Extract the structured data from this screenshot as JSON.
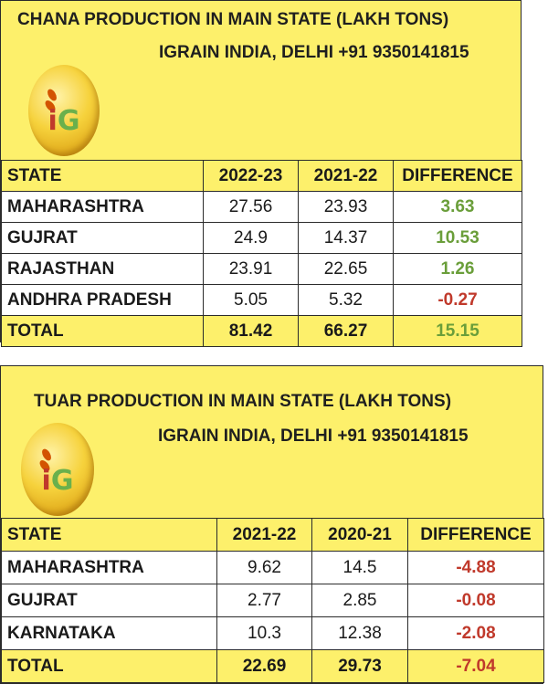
{
  "chana": {
    "title": "CHANA PRODUCTION IN MAIN STATE (LAKH TONS)",
    "subtitle": "IGRAIN INDIA, DELHI +91 9350141815",
    "logo_text": "iG",
    "headers": [
      "STATE",
      "2022-23",
      "2021-22",
      "DIFFERENCE"
    ],
    "rows": [
      {
        "state": "MAHARASHTRA",
        "a": "27.56",
        "b": "23.93",
        "diff": "3.63"
      },
      {
        "state": "GUJRAT",
        "a": "24.9",
        "b": "14.37",
        "diff": "10.53"
      },
      {
        "state": "RAJASTHAN",
        "a": "23.91",
        "b": "22.65",
        "diff": "1.26"
      },
      {
        "state": "ANDHRA PRADESH",
        "a": "5.05",
        "b": "5.32",
        "diff": "-0.27"
      }
    ],
    "total": {
      "state": "TOTAL",
      "a": "81.42",
      "b": "66.27",
      "diff": "15.15"
    }
  },
  "tuar": {
    "title": "TUAR PRODUCTION IN MAIN STATE (LAKH TONS)",
    "subtitle": "IGRAIN INDIA, DELHI +91 9350141815",
    "logo_text": "iG",
    "headers": [
      "STATE",
      "2021-22",
      "2020-21",
      "DIFFERENCE"
    ],
    "rows": [
      {
        "state": "MAHARASHTRA",
        "a": "9.62",
        "b": "14.5",
        "diff": "-4.88"
      },
      {
        "state": "GUJRAT",
        "a": "2.77",
        "b": "2.85",
        "diff": "-0.08"
      },
      {
        "state": "KARNATAKA",
        "a": "10.3",
        "b": "12.38",
        "diff": "-2.08"
      }
    ],
    "total": {
      "state": "TOTAL",
      "a": "22.69",
      "b": "29.73",
      "diff": "-7.04"
    }
  },
  "colors": {
    "panel": "#fdf06b",
    "positive": "#6a9e3a",
    "negative": "#c0392b"
  }
}
